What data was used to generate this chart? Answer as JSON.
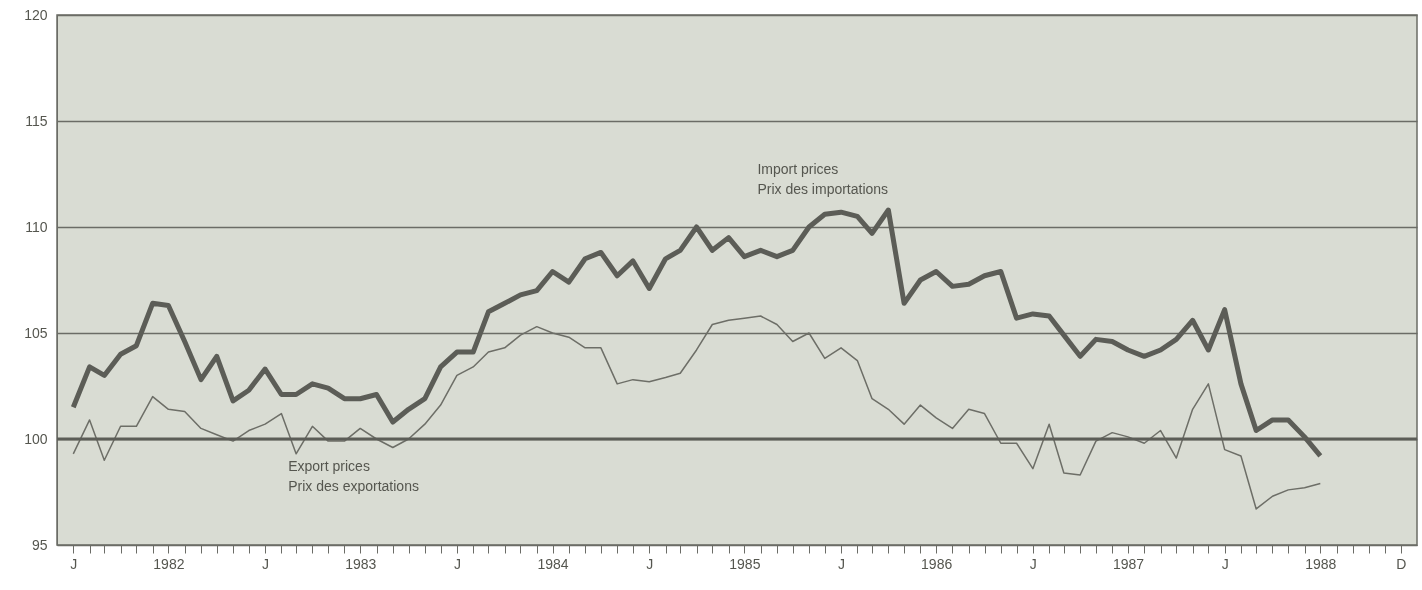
{
  "chart_data": {
    "type": "line",
    "x": [
      "1982-01",
      "1982-02",
      "1982-03",
      "1982-04",
      "1982-05",
      "1982-06",
      "1982-07",
      "1982-08",
      "1982-09",
      "1982-10",
      "1982-11",
      "1982-12",
      "1983-01",
      "1983-02",
      "1983-03",
      "1983-04",
      "1983-05",
      "1983-06",
      "1983-07",
      "1983-08",
      "1983-09",
      "1983-10",
      "1983-11",
      "1983-12",
      "1984-01",
      "1984-02",
      "1984-03",
      "1984-04",
      "1984-05",
      "1984-06",
      "1984-07",
      "1984-08",
      "1984-09",
      "1984-10",
      "1984-11",
      "1984-12",
      "1985-01",
      "1985-02",
      "1985-03",
      "1985-04",
      "1985-05",
      "1985-06",
      "1985-07",
      "1985-08",
      "1985-09",
      "1985-10",
      "1985-11",
      "1985-12",
      "1986-01",
      "1986-02",
      "1986-03",
      "1986-04",
      "1986-05",
      "1986-06",
      "1986-07",
      "1986-08",
      "1986-09",
      "1986-10",
      "1986-11",
      "1986-12",
      "1987-01",
      "1987-02",
      "1987-03",
      "1987-04",
      "1987-05",
      "1987-06",
      "1987-07",
      "1987-08",
      "1987-09",
      "1987-10",
      "1987-11",
      "1987-12",
      "1988-01",
      "1988-02",
      "1988-03",
      "1988-04",
      "1988-05",
      "1988-06",
      "1988-07"
    ],
    "series": [
      {
        "name": "Import prices\nPrix des importations",
        "color": "#5c5d57",
        "values": [
          101.5,
          103.4,
          103.0,
          104.0,
          104.4,
          106.4,
          106.3,
          104.6,
          102.8,
          103.9,
          101.8,
          102.3,
          103.3,
          102.1,
          102.1,
          102.6,
          102.4,
          101.9,
          101.9,
          102.1,
          100.8,
          101.4,
          101.9,
          103.4,
          104.1,
          104.1,
          106.0,
          106.4,
          106.8,
          107.0,
          107.9,
          107.4,
          108.5,
          108.8,
          107.7,
          108.4,
          107.1,
          108.5,
          108.9,
          110.0,
          108.9,
          109.5,
          108.6,
          108.9,
          108.6,
          108.9,
          110.0,
          110.6,
          110.7,
          110.5,
          109.7,
          110.8,
          106.4,
          107.5,
          107.9,
          107.2,
          107.3,
          107.7,
          107.9,
          105.7,
          105.9,
          105.8,
          104.9,
          103.9,
          104.7,
          104.6,
          104.2,
          103.9,
          104.2,
          104.7,
          105.6,
          104.2,
          106.1,
          102.6,
          100.4,
          100.9,
          100.9,
          100.1,
          99.2
        ]
      },
      {
        "name": "Export prices\nPrix des exportations",
        "color": "#6d6e67",
        "values": [
          99.3,
          100.9,
          99.0,
          100.6,
          100.6,
          102.0,
          101.4,
          101.3,
          100.5,
          100.2,
          99.9,
          100.4,
          100.7,
          101.2,
          99.3,
          100.6,
          99.9,
          99.9,
          100.5,
          100.0,
          99.6,
          100.0,
          100.7,
          101.6,
          103.0,
          103.4,
          104.1,
          104.3,
          104.9,
          105.3,
          105.0,
          104.8,
          104.3,
          104.3,
          102.6,
          102.8,
          102.7,
          102.9,
          103.1,
          104.2,
          105.4,
          105.6,
          105.7,
          105.8,
          105.4,
          104.6,
          105.0,
          103.8,
          104.3,
          103.7,
          101.9,
          101.4,
          100.7,
          101.6,
          101.0,
          100.5,
          101.4,
          101.2,
          99.8,
          99.8,
          98.6,
          100.7,
          98.4,
          98.3,
          99.9,
          100.3,
          100.1,
          99.8,
          100.4,
          99.1,
          101.4,
          102.6,
          99.5,
          99.2,
          96.7,
          97.3,
          97.6,
          97.7,
          97.9
        ]
      }
    ],
    "xlim": [
      "1981-12",
      "1989-01"
    ],
    "xticks": [
      {
        "value": "1982-01",
        "label": "J"
      },
      {
        "value": "1982-02",
        "label": null
      },
      {
        "value": "1982-03",
        "label": null
      },
      {
        "value": "1982-04",
        "label": null
      },
      {
        "value": "1982-05",
        "label": null
      },
      {
        "value": "1982-06",
        "label": null
      },
      {
        "value": "1982-07",
        "label": "1982"
      },
      {
        "value": "1982-08",
        "label": null
      },
      {
        "value": "1982-09",
        "label": null
      },
      {
        "value": "1982-10",
        "label": null
      },
      {
        "value": "1982-11",
        "label": null
      },
      {
        "value": "1982-12",
        "label": null
      },
      {
        "value": "1983-01",
        "label": "J"
      },
      {
        "value": "1983-02",
        "label": null
      },
      {
        "value": "1983-03",
        "label": null
      },
      {
        "value": "1983-04",
        "label": null
      },
      {
        "value": "1983-05",
        "label": null
      },
      {
        "value": "1983-06",
        "label": null
      },
      {
        "value": "1983-07",
        "label": "1983"
      },
      {
        "value": "1983-08",
        "label": null
      },
      {
        "value": "1983-09",
        "label": null
      },
      {
        "value": "1983-10",
        "label": null
      },
      {
        "value": "1983-11",
        "label": null
      },
      {
        "value": "1983-12",
        "label": null
      },
      {
        "value": "1984-01",
        "label": "J"
      },
      {
        "value": "1984-02",
        "label": null
      },
      {
        "value": "1984-03",
        "label": null
      },
      {
        "value": "1984-04",
        "label": null
      },
      {
        "value": "1984-05",
        "label": null
      },
      {
        "value": "1984-06",
        "label": null
      },
      {
        "value": "1984-07",
        "label": "1984"
      },
      {
        "value": "1984-08",
        "label": null
      },
      {
        "value": "1984-09",
        "label": null
      },
      {
        "value": "1984-10",
        "label": null
      },
      {
        "value": "1984-11",
        "label": null
      },
      {
        "value": "1984-12",
        "label": null
      },
      {
        "value": "1985-01",
        "label": "J"
      },
      {
        "value": "1985-02",
        "label": null
      },
      {
        "value": "1985-03",
        "label": null
      },
      {
        "value": "1985-04",
        "label": null
      },
      {
        "value": "1985-05",
        "label": null
      },
      {
        "value": "1985-06",
        "label": null
      },
      {
        "value": "1985-07",
        "label": "1985"
      },
      {
        "value": "1985-08",
        "label": null
      },
      {
        "value": "1985-09",
        "label": null
      },
      {
        "value": "1985-10",
        "label": null
      },
      {
        "value": "1985-11",
        "label": null
      },
      {
        "value": "1985-12",
        "label": null
      },
      {
        "value": "1986-01",
        "label": "J"
      },
      {
        "value": "1986-02",
        "label": null
      },
      {
        "value": "1986-03",
        "label": null
      },
      {
        "value": "1986-04",
        "label": null
      },
      {
        "value": "1986-05",
        "label": null
      },
      {
        "value": "1986-06",
        "label": null
      },
      {
        "value": "1986-07",
        "label": "1986"
      },
      {
        "value": "1986-08",
        "label": null
      },
      {
        "value": "1986-09",
        "label": null
      },
      {
        "value": "1986-10",
        "label": null
      },
      {
        "value": "1986-11",
        "label": null
      },
      {
        "value": "1986-12",
        "label": null
      },
      {
        "value": "1987-01",
        "label": "J"
      },
      {
        "value": "1987-02",
        "label": null
      },
      {
        "value": "1987-03",
        "label": null
      },
      {
        "value": "1987-04",
        "label": null
      },
      {
        "value": "1987-05",
        "label": null
      },
      {
        "value": "1987-06",
        "label": null
      },
      {
        "value": "1987-07",
        "label": "1987"
      },
      {
        "value": "1987-08",
        "label": null
      },
      {
        "value": "1987-09",
        "label": null
      },
      {
        "value": "1987-10",
        "label": null
      },
      {
        "value": "1987-11",
        "label": null
      },
      {
        "value": "1987-12",
        "label": null
      },
      {
        "value": "1988-01",
        "label": "J"
      },
      {
        "value": "1988-02",
        "label": null
      },
      {
        "value": "1988-03",
        "label": null
      },
      {
        "value": "1988-04",
        "label": null
      },
      {
        "value": "1988-05",
        "label": null
      },
      {
        "value": "1988-06",
        "label": null
      },
      {
        "value": "1988-07",
        "label": "1988"
      },
      {
        "value": "1988-08",
        "label": null
      },
      {
        "value": "1988-09",
        "label": null
      },
      {
        "value": "1988-10",
        "label": null
      },
      {
        "value": "1988-11",
        "label": null
      },
      {
        "value": "1988-12",
        "label": "D"
      }
    ],
    "ylim": [
      95,
      120
    ],
    "yticks": [
      95,
      100,
      105,
      110,
      115,
      120
    ],
    "ref_lines": [
      {
        "axis": "y",
        "value": 100,
        "color": "#5c5d57"
      }
    ],
    "grid": "y",
    "line_style": "solid"
  }
}
